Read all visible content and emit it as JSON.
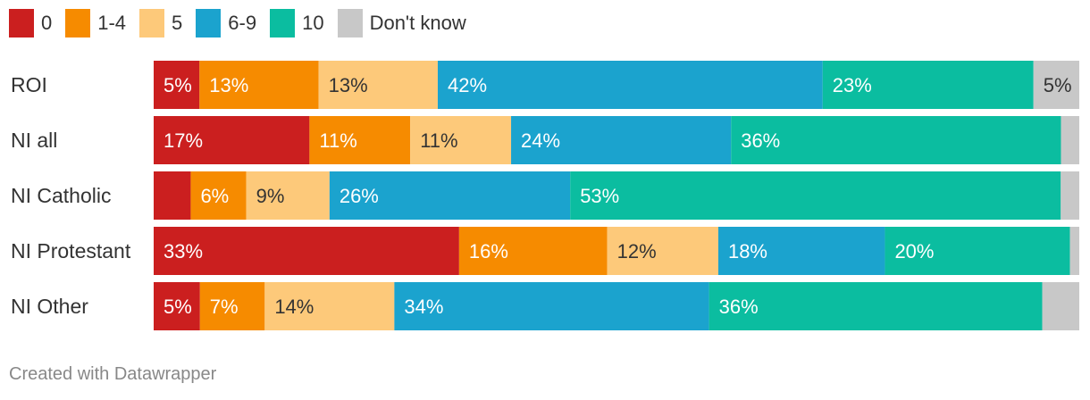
{
  "chart_data": {
    "type": "bar",
    "orientation": "horizontal",
    "stacked": true,
    "normalized": true,
    "categories": [
      "ROI",
      "NI all",
      "NI Catholic",
      "NI Protestant",
      "NI Other"
    ],
    "series": [
      {
        "name": "0",
        "color": "#cb1f1f",
        "values": [
          5,
          17,
          4,
          33,
          5
        ],
        "labels": [
          "5%",
          "17%",
          "",
          "33%",
          "5%"
        ],
        "label_color": "#ffffff"
      },
      {
        "name": "1-4",
        "color": "#f68b00",
        "values": [
          13,
          11,
          6,
          16,
          7
        ],
        "labels": [
          "13%",
          "11%",
          "6%",
          "16%",
          "7%"
        ],
        "label_color": "#ffffff"
      },
      {
        "name": "5",
        "color": "#fdc97a",
        "values": [
          13,
          11,
          9,
          12,
          14
        ],
        "labels": [
          "13%",
          "11%",
          "9%",
          "12%",
          "14%"
        ],
        "label_color": "#333333"
      },
      {
        "name": "6-9",
        "color": "#1ba3ce",
        "values": [
          42,
          24,
          26,
          18,
          34
        ],
        "labels": [
          "42%",
          "24%",
          "26%",
          "18%",
          "34%"
        ],
        "label_color": "#ffffff"
      },
      {
        "name": "10",
        "color": "#0bbda0",
        "values": [
          23,
          36,
          53,
          20,
          36
        ],
        "labels": [
          "23%",
          "36%",
          "53%",
          "20%",
          "36%"
        ],
        "label_color": "#ffffff"
      },
      {
        "name": "Don't know",
        "color": "#c8c8c8",
        "values": [
          5,
          2,
          2,
          1,
          4
        ],
        "labels": [
          "5%",
          "",
          "",
          "",
          ""
        ],
        "label_color": "#333333"
      }
    ],
    "legend_position": "top-left",
    "grid": false
  },
  "footer": {
    "credit": "Created with Datawrapper"
  }
}
